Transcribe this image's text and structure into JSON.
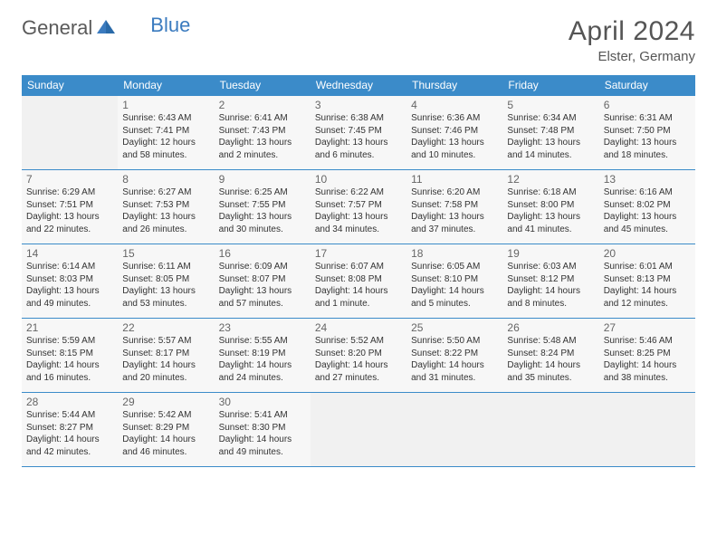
{
  "brand": {
    "part1": "General",
    "part2": "Blue"
  },
  "title": "April 2024",
  "location": "Elster, Germany",
  "colors": {
    "header_bg": "#3b8bc9",
    "accent": "#3b7bbf",
    "cell_bg": "#f7f7f7",
    "empty_bg": "#f1f1f1",
    "text": "#333333",
    "border": "#3b8bc9"
  },
  "weekdays": [
    "Sunday",
    "Monday",
    "Tuesday",
    "Wednesday",
    "Thursday",
    "Friday",
    "Saturday"
  ],
  "weeks": [
    [
      null,
      {
        "n": "1",
        "sr": "6:43 AM",
        "ss": "7:41 PM",
        "dl": "12 hours and 58 minutes."
      },
      {
        "n": "2",
        "sr": "6:41 AM",
        "ss": "7:43 PM",
        "dl": "13 hours and 2 minutes."
      },
      {
        "n": "3",
        "sr": "6:38 AM",
        "ss": "7:45 PM",
        "dl": "13 hours and 6 minutes."
      },
      {
        "n": "4",
        "sr": "6:36 AM",
        "ss": "7:46 PM",
        "dl": "13 hours and 10 minutes."
      },
      {
        "n": "5",
        "sr": "6:34 AM",
        "ss": "7:48 PM",
        "dl": "13 hours and 14 minutes."
      },
      {
        "n": "6",
        "sr": "6:31 AM",
        "ss": "7:50 PM",
        "dl": "13 hours and 18 minutes."
      }
    ],
    [
      {
        "n": "7",
        "sr": "6:29 AM",
        "ss": "7:51 PM",
        "dl": "13 hours and 22 minutes."
      },
      {
        "n": "8",
        "sr": "6:27 AM",
        "ss": "7:53 PM",
        "dl": "13 hours and 26 minutes."
      },
      {
        "n": "9",
        "sr": "6:25 AM",
        "ss": "7:55 PM",
        "dl": "13 hours and 30 minutes."
      },
      {
        "n": "10",
        "sr": "6:22 AM",
        "ss": "7:57 PM",
        "dl": "13 hours and 34 minutes."
      },
      {
        "n": "11",
        "sr": "6:20 AM",
        "ss": "7:58 PM",
        "dl": "13 hours and 37 minutes."
      },
      {
        "n": "12",
        "sr": "6:18 AM",
        "ss": "8:00 PM",
        "dl": "13 hours and 41 minutes."
      },
      {
        "n": "13",
        "sr": "6:16 AM",
        "ss": "8:02 PM",
        "dl": "13 hours and 45 minutes."
      }
    ],
    [
      {
        "n": "14",
        "sr": "6:14 AM",
        "ss": "8:03 PM",
        "dl": "13 hours and 49 minutes."
      },
      {
        "n": "15",
        "sr": "6:11 AM",
        "ss": "8:05 PM",
        "dl": "13 hours and 53 minutes."
      },
      {
        "n": "16",
        "sr": "6:09 AM",
        "ss": "8:07 PM",
        "dl": "13 hours and 57 minutes."
      },
      {
        "n": "17",
        "sr": "6:07 AM",
        "ss": "8:08 PM",
        "dl": "14 hours and 1 minute."
      },
      {
        "n": "18",
        "sr": "6:05 AM",
        "ss": "8:10 PM",
        "dl": "14 hours and 5 minutes."
      },
      {
        "n": "19",
        "sr": "6:03 AM",
        "ss": "8:12 PM",
        "dl": "14 hours and 8 minutes."
      },
      {
        "n": "20",
        "sr": "6:01 AM",
        "ss": "8:13 PM",
        "dl": "14 hours and 12 minutes."
      }
    ],
    [
      {
        "n": "21",
        "sr": "5:59 AM",
        "ss": "8:15 PM",
        "dl": "14 hours and 16 minutes."
      },
      {
        "n": "22",
        "sr": "5:57 AM",
        "ss": "8:17 PM",
        "dl": "14 hours and 20 minutes."
      },
      {
        "n": "23",
        "sr": "5:55 AM",
        "ss": "8:19 PM",
        "dl": "14 hours and 24 minutes."
      },
      {
        "n": "24",
        "sr": "5:52 AM",
        "ss": "8:20 PM",
        "dl": "14 hours and 27 minutes."
      },
      {
        "n": "25",
        "sr": "5:50 AM",
        "ss": "8:22 PM",
        "dl": "14 hours and 31 minutes."
      },
      {
        "n": "26",
        "sr": "5:48 AM",
        "ss": "8:24 PM",
        "dl": "14 hours and 35 minutes."
      },
      {
        "n": "27",
        "sr": "5:46 AM",
        "ss": "8:25 PM",
        "dl": "14 hours and 38 minutes."
      }
    ],
    [
      {
        "n": "28",
        "sr": "5:44 AM",
        "ss": "8:27 PM",
        "dl": "14 hours and 42 minutes."
      },
      {
        "n": "29",
        "sr": "5:42 AM",
        "ss": "8:29 PM",
        "dl": "14 hours and 46 minutes."
      },
      {
        "n": "30",
        "sr": "5:41 AM",
        "ss": "8:30 PM",
        "dl": "14 hours and 49 minutes."
      },
      null,
      null,
      null,
      null
    ]
  ],
  "labels": {
    "sunrise": "Sunrise:",
    "sunset": "Sunset:",
    "daylight": "Daylight:"
  }
}
